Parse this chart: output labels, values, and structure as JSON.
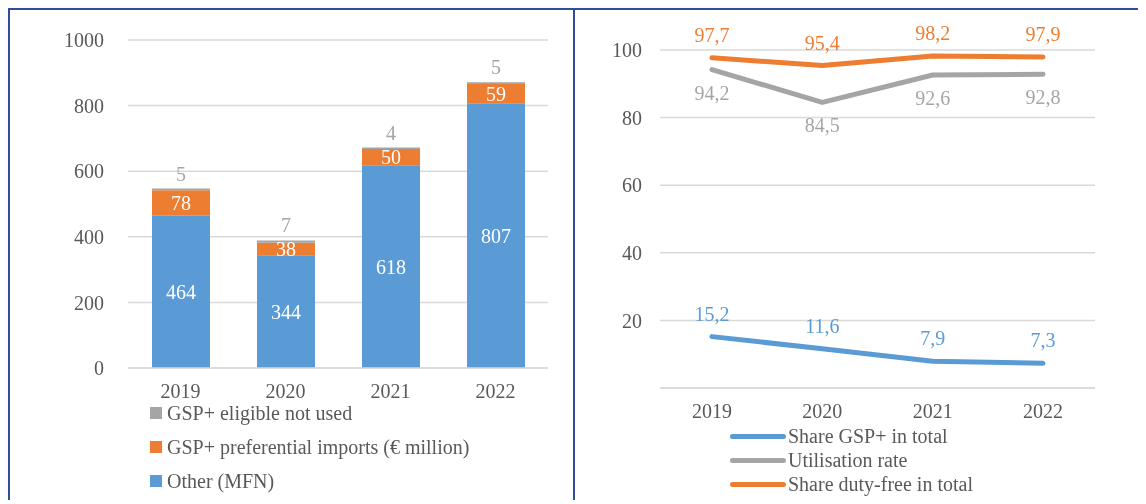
{
  "chart_data": [
    {
      "type": "bar",
      "stacked": true,
      "categories": [
        "2019",
        "2020",
        "2021",
        "2022"
      ],
      "series": [
        {
          "name": "Other (MFN)",
          "color": "#5b9bd5",
          "values": [
            464,
            344,
            618,
            807
          ]
        },
        {
          "name": "GSP+ preferential imports (€ million)",
          "color": "#ed7d31",
          "values": [
            78,
            38,
            50,
            59
          ]
        },
        {
          "name": "GSP+ eligible not used",
          "color": "#a5a5a5",
          "values": [
            5,
            7,
            4,
            5
          ]
        }
      ],
      "ylim": [
        0,
        1000
      ],
      "yticks": [
        0,
        200,
        400,
        600,
        800,
        1000
      ],
      "grid": "y",
      "legend": "bottom",
      "data_labels": true
    },
    {
      "type": "line",
      "categories": [
        "2019",
        "2020",
        "2021",
        "2022"
      ],
      "series": [
        {
          "name": "Share GSP+ in total",
          "color": "#5b9bd5",
          "values": [
            15.2,
            11.6,
            7.9,
            7.3
          ],
          "value_labels": [
            "15,2",
            "11,6",
            "7,9",
            "7,3"
          ]
        },
        {
          "name": "Utilisation rate",
          "color": "#a5a5a5",
          "values": [
            94.2,
            84.5,
            92.6,
            92.8
          ],
          "value_labels": [
            "94,2",
            "84,5",
            "92,6",
            "92,8"
          ]
        },
        {
          "name": "Share duty-free in total",
          "color": "#ed7d31",
          "values": [
            97.7,
            95.4,
            98.2,
            97.9
          ],
          "value_labels": [
            "97,7",
            "95,4",
            "98,2",
            "97,9"
          ]
        }
      ],
      "ylim": [
        0,
        100
      ],
      "yticks": [
        20,
        40,
        60,
        80,
        100
      ],
      "grid": "y",
      "legend": "bottom",
      "marker": "none",
      "line_style": "solid"
    }
  ]
}
